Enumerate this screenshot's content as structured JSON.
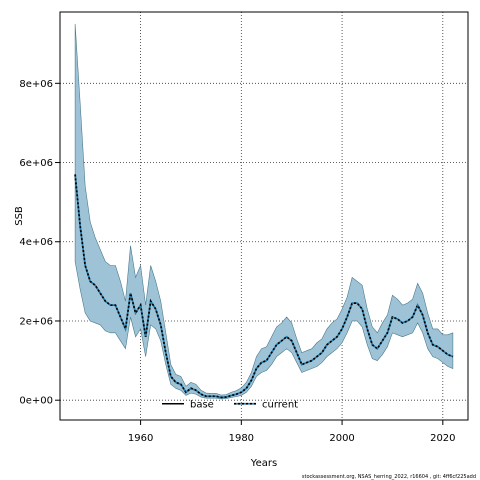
{
  "chart_data": {
    "type": "area",
    "xlabel": "Years",
    "ylabel": "SSB",
    "xlim": [
      1944,
      2025
    ],
    "ylim": [
      -500000,
      9800000
    ],
    "x_ticks": [
      1960,
      1980,
      2000,
      2020
    ],
    "y_ticks": [
      0,
      2000000,
      4000000,
      6000000,
      8000000
    ],
    "y_tick_labels": [
      "0e+00",
      "2e+06",
      "4e+06",
      "6e+06",
      "8e+06"
    ],
    "grid": true,
    "legend_position": "bottom",
    "legend": [
      {
        "name": "base",
        "color": "#000000",
        "style": "solid"
      },
      {
        "name": "current",
        "color": "#1f7fb4",
        "style": "dashed"
      }
    ],
    "band_color": "#9fc3d6",
    "band_edge_color": "#4a7a8c",
    "series": [
      {
        "name": "current",
        "x": [
          1947,
          1948,
          1949,
          1950,
          1951,
          1952,
          1953,
          1954,
          1955,
          1956,
          1957,
          1958,
          1959,
          1960,
          1961,
          1962,
          1963,
          1964,
          1965,
          1966,
          1967,
          1968,
          1969,
          1970,
          1971,
          1972,
          1973,
          1974,
          1975,
          1976,
          1977,
          1978,
          1979,
          1980,
          1981,
          1982,
          1983,
          1984,
          1985,
          1986,
          1987,
          1988,
          1989,
          1990,
          1991,
          1992,
          1993,
          1994,
          1995,
          1996,
          1997,
          1998,
          1999,
          2000,
          2001,
          2002,
          2003,
          2004,
          2005,
          2006,
          2007,
          2008,
          2009,
          2010,
          2011,
          2012,
          2013,
          2014,
          2015,
          2016,
          2017,
          2018,
          2019,
          2020,
          2021,
          2022
        ],
        "values": [
          5700000,
          4400000,
          3400000,
          3000000,
          2900000,
          2700000,
          2500000,
          2400000,
          2400000,
          2100000,
          1800000,
          2700000,
          2200000,
          2400000,
          1600000,
          2500000,
          2300000,
          1900000,
          1200000,
          600000,
          450000,
          400000,
          200000,
          300000,
          250000,
          150000,
          100000,
          100000,
          100000,
          70000,
          80000,
          120000,
          150000,
          200000,
          300000,
          500000,
          800000,
          950000,
          1000000,
          1200000,
          1400000,
          1500000,
          1600000,
          1500000,
          1200000,
          900000,
          950000,
          1000000,
          1100000,
          1200000,
          1400000,
          1500000,
          1600000,
          1800000,
          2100000,
          2450000,
          2450000,
          2300000,
          1800000,
          1400000,
          1300000,
          1500000,
          1700000,
          2100000,
          2050000,
          1950000,
          2000000,
          2100000,
          2400000,
          2150000,
          1700000,
          1400000,
          1350000,
          1250000,
          1150000,
          1100000
        ]
      },
      {
        "name": "base",
        "x": [
          1947,
          1948,
          1949,
          1950,
          1951,
          1952,
          1953,
          1954,
          1955,
          1956,
          1957,
          1958,
          1959,
          1960,
          1961,
          1962,
          1963,
          1964,
          1965,
          1966,
          1967,
          1968,
          1969,
          1970,
          1971,
          1972,
          1973,
          1974,
          1975,
          1976,
          1977,
          1978,
          1979,
          1980,
          1981,
          1982,
          1983,
          1984,
          1985,
          1986,
          1987,
          1988,
          1989,
          1990,
          1991,
          1992,
          1993,
          1994,
          1995,
          1996,
          1997,
          1998,
          1999,
          2000,
          2001,
          2002,
          2003,
          2004,
          2005,
          2006,
          2007,
          2008,
          2009,
          2010,
          2011,
          2012,
          2013,
          2014,
          2015,
          2016,
          2017,
          2018,
          2019,
          2020,
          2021,
          2022
        ],
        "values": [
          5700000,
          4400000,
          3400000,
          3000000,
          2900000,
          2700000,
          2500000,
          2400000,
          2400000,
          2100000,
          1800000,
          2700000,
          2200000,
          2400000,
          1600000,
          2500000,
          2300000,
          1900000,
          1200000,
          600000,
          450000,
          400000,
          200000,
          300000,
          250000,
          150000,
          100000,
          100000,
          100000,
          70000,
          80000,
          120000,
          150000,
          200000,
          300000,
          500000,
          800000,
          950000,
          1000000,
          1200000,
          1400000,
          1500000,
          1600000,
          1500000,
          1200000,
          900000,
          950000,
          1000000,
          1100000,
          1200000,
          1400000,
          1500000,
          1600000,
          1800000,
          2100000,
          2450000,
          2450000,
          2300000,
          1800000,
          1400000,
          1300000,
          1500000,
          1700000,
          2100000,
          2050000,
          1950000,
          2000000,
          2100000,
          2400000,
          2150000,
          1700000,
          1400000,
          1350000,
          1250000,
          1150000,
          1100000
        ]
      }
    ],
    "band": {
      "x": [
        1947,
        1948,
        1949,
        1950,
        1951,
        1952,
        1953,
        1954,
        1955,
        1956,
        1957,
        1958,
        1959,
        1960,
        1961,
        1962,
        1963,
        1964,
        1965,
        1966,
        1967,
        1968,
        1969,
        1970,
        1971,
        1972,
        1973,
        1974,
        1975,
        1976,
        1977,
        1978,
        1979,
        1980,
        1981,
        1982,
        1983,
        1984,
        1985,
        1986,
        1987,
        1988,
        1989,
        1990,
        1991,
        1992,
        1993,
        1994,
        1995,
        1996,
        1997,
        1998,
        1999,
        2000,
        2001,
        2002,
        2003,
        2004,
        2005,
        2006,
        2007,
        2008,
        2009,
        2010,
        2011,
        2012,
        2013,
        2014,
        2015,
        2016,
        2017,
        2018,
        2019,
        2020,
        2021,
        2022
      ],
      "lower": [
        3500000,
        2800000,
        2200000,
        2000000,
        1950000,
        1900000,
        1750000,
        1700000,
        1700000,
        1500000,
        1300000,
        2100000,
        1600000,
        1800000,
        1100000,
        1900000,
        1800000,
        1500000,
        900000,
        400000,
        300000,
        250000,
        120000,
        180000,
        150000,
        80000,
        50000,
        50000,
        50000,
        30000,
        40000,
        70000,
        90000,
        120000,
        200000,
        350000,
        600000,
        700000,
        750000,
        900000,
        1100000,
        1200000,
        1300000,
        1200000,
        950000,
        700000,
        750000,
        800000,
        850000,
        950000,
        1100000,
        1200000,
        1300000,
        1450000,
        1700000,
        2000000,
        2000000,
        1850000,
        1400000,
        1050000,
        1000000,
        1150000,
        1350000,
        1700000,
        1650000,
        1600000,
        1650000,
        1700000,
        1950000,
        1700000,
        1300000,
        1100000,
        1050000,
        950000,
        850000,
        800000
      ],
      "upper": [
        9500000,
        7500000,
        5400000,
        4500000,
        4100000,
        3800000,
        3500000,
        3400000,
        3400000,
        3000000,
        2500000,
        3900000,
        3100000,
        3400000,
        2400000,
        3400000,
        3000000,
        2500000,
        1700000,
        900000,
        650000,
        600000,
        350000,
        450000,
        400000,
        250000,
        180000,
        170000,
        170000,
        130000,
        140000,
        200000,
        240000,
        310000,
        450000,
        700000,
        1100000,
        1300000,
        1350000,
        1600000,
        1850000,
        1950000,
        2100000,
        1950000,
        1550000,
        1200000,
        1250000,
        1300000,
        1450000,
        1550000,
        1800000,
        1950000,
        2050000,
        2300000,
        2600000,
        3100000,
        3000000,
        2900000,
        2300000,
        1850000,
        1700000,
        1950000,
        2150000,
        2650000,
        2550000,
        2400000,
        2450000,
        2550000,
        2950000,
        2700000,
        2200000,
        1800000,
        1800000,
        1650000,
        1650000,
        1700000
      ]
    }
  },
  "footer": {
    "text": "stockassessment.org, NSAS_herring_2022, r16604 , git: 4ff6cf225add"
  }
}
